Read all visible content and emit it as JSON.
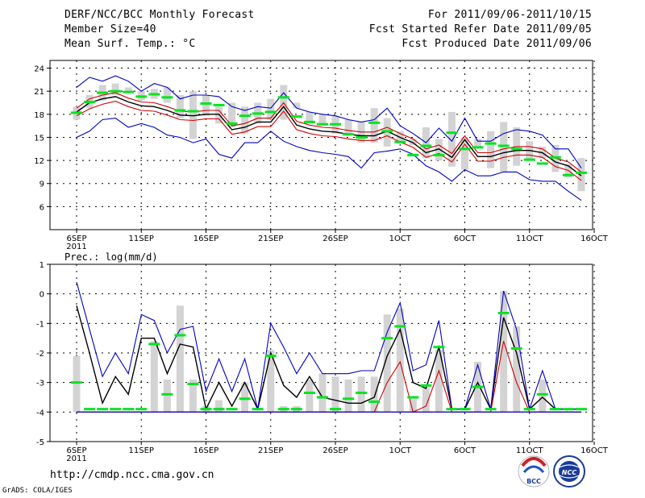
{
  "header": {
    "title": "DERF/NCC/BCC Monthly Forecast",
    "member_size": "Member Size=40",
    "variable": "Mean Surf. Temp.: °C",
    "period": "For 2011/09/06-2011/10/15",
    "refer_date": "Fcst Started Refer Date 2011/09/05",
    "produced_date": "Fcst Produced Date 2011/09/06"
  },
  "footer": {
    "url": "http://cmdp.ncc.cma.gov.cn",
    "credit": "GrADS: COLA/IGES",
    "logo_bcc_text": "BCC",
    "logo_ncc_text": "NCC"
  },
  "colors": {
    "bar": "#d3d3d3",
    "median": "#00e61e",
    "ensemble_mean": "#000000",
    "inner_band": "#d20000",
    "outer_band": "#0000c8"
  },
  "chart_data": [
    {
      "type": "line",
      "title": "Mean Surf. Temp.: °C",
      "xlabels": [
        "6SEP",
        "11SEP",
        "16SEP",
        "21SEP",
        "26SEP",
        "1OCT",
        "6OCT",
        "11OCT",
        "16OCT"
      ],
      "xlabel_sub": "2011",
      "ylim": [
        3,
        25
      ],
      "yticks": [
        6,
        9,
        12,
        15,
        18,
        21,
        24
      ],
      "days": [
        1,
        2,
        3,
        4,
        5,
        6,
        7,
        8,
        9,
        10,
        11,
        12,
        13,
        14,
        15,
        16,
        17,
        18,
        19,
        20,
        21,
        22,
        23,
        24,
        25,
        26,
        27,
        28,
        29,
        30,
        31,
        32,
        33,
        34,
        35,
        36,
        37,
        38,
        39,
        40
      ],
      "bar_low": [
        17.3,
        18.8,
        19.8,
        20.5,
        20.8,
        19.8,
        20.0,
        19.5,
        17.5,
        14.8,
        17.8,
        16.8,
        16.3,
        15.5,
        16.8,
        17.3,
        17.3,
        19.5,
        17.0,
        16.5,
        15.5,
        15.5,
        14.3,
        14.3,
        13.8,
        14.3,
        14.0,
        12.3,
        12.0,
        11.2,
        10.8,
        13.8,
        11.0,
        10.5,
        11.3,
        12.0,
        12.3,
        10.5,
        9.8,
        8.0
      ],
      "bar_high": [
        19.0,
        20.5,
        21.8,
        22.0,
        21.5,
        21.0,
        21.3,
        21.5,
        20.5,
        21.0,
        20.5,
        19.0,
        19.5,
        19.0,
        19.5,
        20.0,
        21.8,
        18.8,
        18.3,
        18.0,
        17.8,
        17.3,
        17.0,
        18.8,
        17.5,
        15.8,
        14.8,
        16.3,
        14.8,
        18.3,
        15.0,
        14.8,
        15.8,
        17.0,
        16.3,
        14.5,
        13.8,
        14.0,
        11.5,
        12.3
      ],
      "series": [
        {
          "name": "median",
          "values": [
            18.2,
            19.6,
            20.8,
            21.0,
            20.9,
            20.3,
            20.6,
            20.2,
            18.5,
            18.4,
            19.4,
            19.2,
            16.8,
            17.8,
            18.1,
            18.3,
            20.2,
            17.7,
            17.0,
            16.7,
            16.7,
            15.4,
            15.0,
            16.9,
            15.8,
            14.4,
            12.7,
            13.9,
            12.7,
            15.6,
            13.5,
            13.7,
            14.2,
            13.9,
            13.5,
            12.1,
            11.6,
            12.4,
            10.1,
            10.4
          ]
        },
        {
          "name": "ensemble mean",
          "values": [
            18.3,
            19.5,
            20.0,
            20.3,
            19.6,
            19.1,
            19.0,
            18.5,
            17.9,
            17.8,
            18.0,
            18.0,
            16.0,
            16.3,
            17.0,
            17.0,
            19.0,
            16.6,
            16.1,
            15.8,
            15.7,
            15.4,
            15.2,
            15.2,
            15.8,
            15.0,
            14.3,
            13.0,
            13.5,
            12.4,
            14.7,
            12.5,
            12.5,
            13.0,
            13.3,
            13.3,
            13.0,
            11.8,
            11.3,
            10.0
          ]
        },
        {
          "name": "upper inner",
          "values": [
            18.8,
            20.0,
            20.5,
            20.8,
            20.1,
            19.6,
            19.5,
            19.0,
            18.4,
            18.3,
            18.5,
            18.5,
            16.5,
            16.8,
            17.5,
            17.5,
            19.5,
            17.1,
            16.6,
            16.3,
            16.2,
            15.9,
            15.7,
            15.7,
            16.3,
            15.5,
            14.8,
            13.5,
            14.0,
            12.9,
            15.2,
            13.0,
            13.0,
            13.5,
            13.8,
            13.8,
            13.5,
            12.3,
            11.8,
            10.5
          ]
        },
        {
          "name": "lower inner",
          "values": [
            17.8,
            18.7,
            19.3,
            19.7,
            19.0,
            18.5,
            18.4,
            17.9,
            17.3,
            17.2,
            17.4,
            17.4,
            15.4,
            15.7,
            16.4,
            16.4,
            18.4,
            16.0,
            15.5,
            15.2,
            15.1,
            14.8,
            14.6,
            14.6,
            15.2,
            14.4,
            13.7,
            12.4,
            12.9,
            11.8,
            14.1,
            11.9,
            11.9,
            12.4,
            12.7,
            12.7,
            12.4,
            11.2,
            10.7,
            9.4
          ]
        },
        {
          "name": "upper outer",
          "values": [
            21.5,
            22.8,
            22.3,
            23.0,
            22.3,
            21.0,
            22.0,
            21.5,
            20.0,
            20.5,
            20.5,
            20.3,
            19.0,
            18.5,
            19.0,
            18.8,
            20.8,
            18.8,
            18.3,
            18.0,
            17.8,
            17.3,
            17.0,
            17.3,
            18.8,
            16.5,
            15.5,
            14.3,
            16.2,
            14.5,
            17.5,
            14.5,
            14.5,
            15.5,
            16.0,
            15.8,
            15.3,
            13.5,
            13.5,
            11.0
          ]
        },
        {
          "name": "lower outer",
          "values": [
            15.0,
            15.8,
            17.3,
            17.5,
            16.3,
            16.8,
            16.3,
            15.3,
            15.0,
            14.3,
            14.8,
            12.8,
            12.3,
            14.3,
            14.3,
            15.8,
            14.5,
            13.8,
            13.3,
            13.0,
            12.8,
            12.5,
            11.0,
            13.0,
            13.2,
            13.5,
            12.8,
            11.3,
            10.5,
            9.3,
            10.8,
            10.0,
            10.0,
            10.5,
            10.5,
            9.5,
            9.3,
            9.3,
            8.0,
            6.8
          ]
        }
      ]
    },
    {
      "type": "line",
      "title": "Prec.: log(mm/d)",
      "xlabels": [
        "6SEP",
        "11SEP",
        "16SEP",
        "21SEP",
        "26SEP",
        "1OCT",
        "6OCT",
        "11OCT",
        "16OCT"
      ],
      "xlabel_sub": "2011",
      "ylim": [
        -5,
        1
      ],
      "yticks": [
        -5,
        -4,
        -3,
        -2,
        -1,
        0,
        1
      ],
      "days": [
        1,
        2,
        3,
        4,
        5,
        6,
        7,
        8,
        9,
        10,
        11,
        12,
        13,
        14,
        15,
        16,
        17,
        18,
        19,
        20,
        21,
        22,
        23,
        24,
        25,
        26,
        27,
        28,
        29,
        30,
        31,
        32,
        33,
        34,
        35,
        36,
        37,
        38,
        39,
        40
      ],
      "bar_low": [
        -4,
        -4,
        -4,
        -4,
        -4,
        -4,
        -4,
        -4,
        -4,
        -4,
        -4,
        -4,
        -4,
        -4,
        -4,
        -4,
        -4,
        -4,
        -4,
        -4,
        -4,
        -4,
        -4,
        -4,
        -4,
        -4,
        -4,
        -4,
        -4,
        -4,
        -4,
        -4,
        -4,
        -4,
        -4,
        -4,
        -4,
        -4,
        -4,
        -4
      ],
      "bar_high": [
        -2.1,
        -4.0,
        -4.0,
        -4.0,
        -4.0,
        -4.0,
        -1.6,
        -2.9,
        -0.4,
        -2.9,
        -3.8,
        -3.6,
        -4.0,
        -3.0,
        -4.0,
        -1.9,
        -3.8,
        -3.8,
        -2.9,
        -2.7,
        -2.8,
        -2.9,
        -2.8,
        -2.8,
        -0.7,
        -0.5,
        -3.5,
        -3.2,
        -1.9,
        -4.0,
        -4.0,
        -2.3,
        -4.0,
        0.1,
        -1.1,
        -4.0,
        -2.9,
        -4.0,
        -4.0,
        -4.0
      ],
      "series": [
        {
          "name": "median",
          "values": [
            -3.0,
            -3.9,
            -3.9,
            -3.9,
            -3.9,
            -3.9,
            -1.7,
            -3.4,
            -1.4,
            -3.05,
            -3.9,
            -3.9,
            -3.9,
            -3.55,
            -3.9,
            -2.1,
            -3.9,
            -3.9,
            -3.35,
            -3.5,
            -3.9,
            -3.55,
            -3.35,
            -3.65,
            -1.5,
            -1.1,
            -3.5,
            -3.1,
            -1.8,
            -3.9,
            -3.9,
            -3.15,
            -3.9,
            -0.65,
            -1.85,
            -3.9,
            -3.4,
            -3.9,
            -3.9,
            -3.9
          ]
        },
        {
          "name": "ensemble mean",
          "values": [
            -0.4,
            -2.0,
            -3.7,
            -2.8,
            -3.4,
            -1.5,
            -1.5,
            -2.7,
            -1.7,
            -1.8,
            -3.9,
            -3.0,
            -3.8,
            -3.0,
            -3.9,
            -2.0,
            -3.1,
            -3.5,
            -2.8,
            -3.5,
            -3.6,
            -3.7,
            -3.7,
            -3.5,
            -2.1,
            -1.2,
            -3.0,
            -3.2,
            -1.8,
            -3.9,
            -3.9,
            -3.0,
            -3.9,
            -0.8,
            -2.0,
            -3.9,
            -3.5,
            -3.9,
            -3.9,
            -3.9
          ]
        },
        {
          "name": "upper inner",
          "values": [
            -4,
            -4,
            -4,
            -4,
            -4,
            -4,
            -4,
            -4,
            -4,
            -4,
            -4,
            -4,
            -4,
            -4,
            -4,
            -4,
            -4,
            -4,
            -4,
            -4,
            -4,
            -4,
            -4,
            -4,
            -3.0,
            -2.3,
            -4.0,
            -3.8,
            -2.6,
            -4,
            -4,
            -4,
            -4,
            -1.6,
            -3.0,
            -4,
            -4,
            -4,
            -4,
            -4
          ]
        },
        {
          "name": "lower inner",
          "values": [
            -4,
            -4,
            -4,
            -4,
            -4,
            -4,
            -4,
            -4,
            -4,
            -4,
            -4,
            -4,
            -4,
            -4,
            -4,
            -4,
            -4,
            -4,
            -4,
            -4,
            -4,
            -4,
            -4,
            -4,
            -4,
            -4,
            -4,
            -4,
            -4,
            -4,
            -4,
            -4,
            -4,
            -4,
            -4,
            -4,
            -4,
            -4,
            -4,
            -4
          ]
        },
        {
          "name": "upper outer",
          "values": [
            0.4,
            -1.2,
            -2.8,
            -2.0,
            -2.7,
            -0.7,
            -0.9,
            -2.0,
            -1.2,
            -1.1,
            -3.3,
            -2.2,
            -3.3,
            -2.2,
            -3.9,
            -1.0,
            -1.8,
            -2.7,
            -2.0,
            -2.7,
            -2.7,
            -2.7,
            -2.6,
            -2.6,
            -1.3,
            -0.3,
            -2.6,
            -2.4,
            -0.9,
            -3.9,
            -3.9,
            -2.4,
            -3.9,
            0.1,
            -1.2,
            -3.9,
            -2.6,
            -3.9,
            -3.9,
            -3.9
          ]
        },
        {
          "name": "lower outer",
          "values": [
            -4,
            -4,
            -4,
            -4,
            -4,
            -4,
            -4,
            -4,
            -4,
            -4,
            -4,
            -4,
            -4,
            -4,
            -4,
            -4,
            -4,
            -4,
            -4,
            -4,
            -4,
            -4,
            -4,
            -4,
            -4,
            -4,
            -4,
            -4,
            -4,
            -4,
            -4,
            -4,
            -4,
            -4,
            -4,
            -4,
            -4,
            -4,
            -4,
            -4
          ]
        }
      ]
    }
  ]
}
